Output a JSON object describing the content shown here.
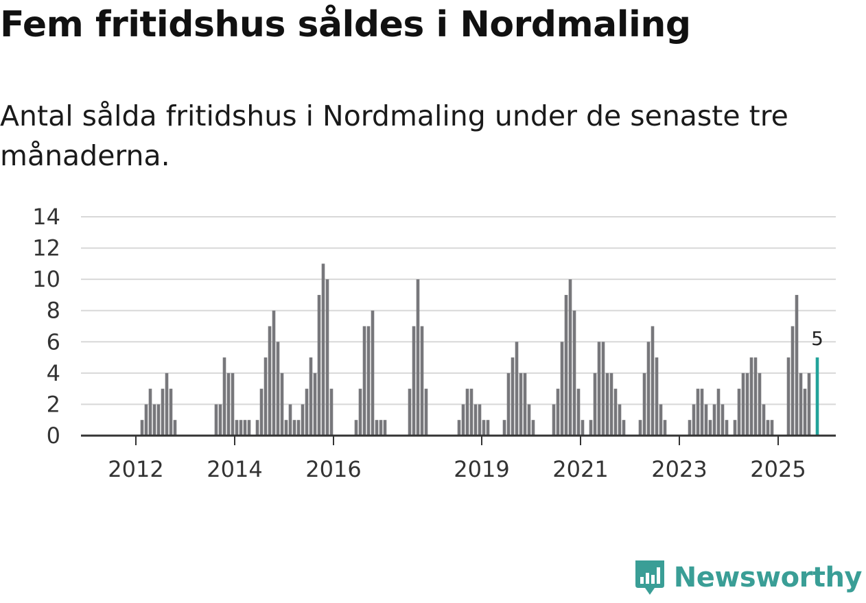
{
  "header": {
    "title": "Fem fritidshus såldes i Nordmaling",
    "subtitle": "Antal sålda fritidshus i Nordmaling under de senaste tre månaderna."
  },
  "brand": {
    "name": "Newsworthy"
  },
  "colors": {
    "bar": "#77777b",
    "highlight": "#22a39a",
    "grid": "#d8d8d8",
    "axis": "#333333",
    "brand": "#3a9e96"
  },
  "chart_data": {
    "type": "bar",
    "title": "Fem fritidshus såldes i Nordmaling",
    "subtitle": "Antal sålda fritidshus i Nordmaling under de senaste tre månaderna.",
    "xlabel": "",
    "ylabel": "",
    "ylim": [
      0,
      14
    ],
    "y_ticks": [
      0,
      2,
      4,
      6,
      8,
      10,
      12,
      14
    ],
    "x_range": [
      "2011-01",
      "2025-10"
    ],
    "x_ticks": [
      {
        "label": "2012",
        "date": "2012-01"
      },
      {
        "label": "2014",
        "date": "2014-01"
      },
      {
        "label": "2016",
        "date": "2016-01"
      },
      {
        "label": "2019",
        "date": "2019-01"
      },
      {
        "label": "2021",
        "date": "2021-01"
      },
      {
        "label": "2023",
        "date": "2023-01"
      },
      {
        "label": "2025",
        "date": "2025-01"
      }
    ],
    "grid": true,
    "annotation": {
      "date": "2025-10",
      "value": 5,
      "label": "5"
    },
    "highlight": "2025-10",
    "data": [
      {
        "x": "2012-02",
        "y": 1
      },
      {
        "x": "2012-03",
        "y": 2
      },
      {
        "x": "2012-04",
        "y": 3
      },
      {
        "x": "2012-05",
        "y": 2
      },
      {
        "x": "2012-06",
        "y": 2
      },
      {
        "x": "2012-07",
        "y": 3
      },
      {
        "x": "2012-08",
        "y": 4
      },
      {
        "x": "2012-09",
        "y": 3
      },
      {
        "x": "2012-10",
        "y": 1
      },
      {
        "x": "2013-08",
        "y": 2
      },
      {
        "x": "2013-09",
        "y": 2
      },
      {
        "x": "2013-10",
        "y": 5
      },
      {
        "x": "2013-11",
        "y": 4
      },
      {
        "x": "2013-12",
        "y": 4
      },
      {
        "x": "2014-01",
        "y": 1
      },
      {
        "x": "2014-02",
        "y": 1
      },
      {
        "x": "2014-03",
        "y": 1
      },
      {
        "x": "2014-04",
        "y": 1
      },
      {
        "x": "2014-06",
        "y": 1
      },
      {
        "x": "2014-07",
        "y": 3
      },
      {
        "x": "2014-08",
        "y": 5
      },
      {
        "x": "2014-09",
        "y": 7
      },
      {
        "x": "2014-10",
        "y": 8
      },
      {
        "x": "2014-11",
        "y": 6
      },
      {
        "x": "2014-12",
        "y": 4
      },
      {
        "x": "2015-01",
        "y": 1
      },
      {
        "x": "2015-02",
        "y": 2
      },
      {
        "x": "2015-03",
        "y": 1
      },
      {
        "x": "2015-04",
        "y": 1
      },
      {
        "x": "2015-05",
        "y": 2
      },
      {
        "x": "2015-06",
        "y": 3
      },
      {
        "x": "2015-07",
        "y": 5
      },
      {
        "x": "2015-08",
        "y": 4
      },
      {
        "x": "2015-09",
        "y": 9
      },
      {
        "x": "2015-10",
        "y": 11
      },
      {
        "x": "2015-11",
        "y": 10
      },
      {
        "x": "2015-12",
        "y": 3
      },
      {
        "x": "2016-06",
        "y": 1
      },
      {
        "x": "2016-07",
        "y": 3
      },
      {
        "x": "2016-08",
        "y": 7
      },
      {
        "x": "2016-09",
        "y": 7
      },
      {
        "x": "2016-10",
        "y": 8
      },
      {
        "x": "2016-11",
        "y": 1
      },
      {
        "x": "2016-12",
        "y": 1
      },
      {
        "x": "2017-01",
        "y": 1
      },
      {
        "x": "2017-07",
        "y": 3
      },
      {
        "x": "2017-08",
        "y": 7
      },
      {
        "x": "2017-09",
        "y": 10
      },
      {
        "x": "2017-10",
        "y": 7
      },
      {
        "x": "2017-11",
        "y": 3
      },
      {
        "x": "2018-07",
        "y": 1
      },
      {
        "x": "2018-08",
        "y": 2
      },
      {
        "x": "2018-09",
        "y": 3
      },
      {
        "x": "2018-10",
        "y": 3
      },
      {
        "x": "2018-11",
        "y": 2
      },
      {
        "x": "2018-12",
        "y": 2
      },
      {
        "x": "2019-01",
        "y": 1
      },
      {
        "x": "2019-02",
        "y": 1
      },
      {
        "x": "2019-06",
        "y": 1
      },
      {
        "x": "2019-07",
        "y": 4
      },
      {
        "x": "2019-08",
        "y": 5
      },
      {
        "x": "2019-09",
        "y": 6
      },
      {
        "x": "2019-10",
        "y": 4
      },
      {
        "x": "2019-11",
        "y": 4
      },
      {
        "x": "2019-12",
        "y": 2
      },
      {
        "x": "2020-01",
        "y": 1
      },
      {
        "x": "2020-06",
        "y": 2
      },
      {
        "x": "2020-07",
        "y": 3
      },
      {
        "x": "2020-08",
        "y": 6
      },
      {
        "x": "2020-09",
        "y": 9
      },
      {
        "x": "2020-10",
        "y": 10
      },
      {
        "x": "2020-11",
        "y": 8
      },
      {
        "x": "2020-12",
        "y": 3
      },
      {
        "x": "2021-01",
        "y": 1
      },
      {
        "x": "2021-03",
        "y": 1
      },
      {
        "x": "2021-04",
        "y": 4
      },
      {
        "x": "2021-05",
        "y": 6
      },
      {
        "x": "2021-06",
        "y": 6
      },
      {
        "x": "2021-07",
        "y": 4
      },
      {
        "x": "2021-08",
        "y": 4
      },
      {
        "x": "2021-09",
        "y": 3
      },
      {
        "x": "2021-10",
        "y": 2
      },
      {
        "x": "2021-11",
        "y": 1
      },
      {
        "x": "2022-03",
        "y": 1
      },
      {
        "x": "2022-04",
        "y": 4
      },
      {
        "x": "2022-05",
        "y": 6
      },
      {
        "x": "2022-06",
        "y": 7
      },
      {
        "x": "2022-07",
        "y": 5
      },
      {
        "x": "2022-08",
        "y": 2
      },
      {
        "x": "2022-09",
        "y": 1
      },
      {
        "x": "2023-03",
        "y": 1
      },
      {
        "x": "2023-04",
        "y": 2
      },
      {
        "x": "2023-05",
        "y": 3
      },
      {
        "x": "2023-06",
        "y": 3
      },
      {
        "x": "2023-07",
        "y": 2
      },
      {
        "x": "2023-08",
        "y": 1
      },
      {
        "x": "2023-09",
        "y": 2
      },
      {
        "x": "2023-10",
        "y": 3
      },
      {
        "x": "2023-11",
        "y": 2
      },
      {
        "x": "2023-12",
        "y": 1
      },
      {
        "x": "2024-02",
        "y": 1
      },
      {
        "x": "2024-03",
        "y": 3
      },
      {
        "x": "2024-04",
        "y": 4
      },
      {
        "x": "2024-05",
        "y": 4
      },
      {
        "x": "2024-06",
        "y": 5
      },
      {
        "x": "2024-07",
        "y": 5
      },
      {
        "x": "2024-08",
        "y": 4
      },
      {
        "x": "2024-09",
        "y": 2
      },
      {
        "x": "2024-10",
        "y": 1
      },
      {
        "x": "2024-11",
        "y": 1
      },
      {
        "x": "2025-03",
        "y": 5
      },
      {
        "x": "2025-04",
        "y": 7
      },
      {
        "x": "2025-05",
        "y": 9
      },
      {
        "x": "2025-06",
        "y": 4
      },
      {
        "x": "2025-07",
        "y": 3
      },
      {
        "x": "2025-08",
        "y": 4
      },
      {
        "x": "2025-10",
        "y": 5
      }
    ]
  }
}
